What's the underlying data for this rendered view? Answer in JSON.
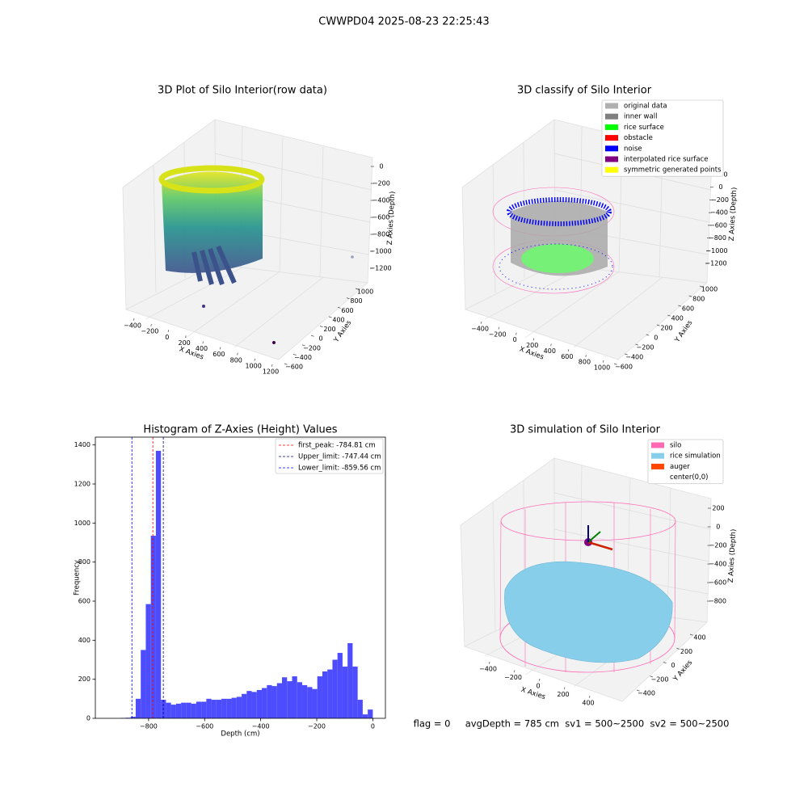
{
  "suptitle": "CWWPD04 2025-08-23 22:25:43",
  "chart_data": {
    "type": "histogram",
    "title": "Histogram of Z-Axies (Height) Values",
    "x_label": "Depth (cm)",
    "y_label": "Frequency",
    "color": "#4d4dff",
    "bins": [
      -900,
      -882,
      -864,
      -846,
      -828,
      -810,
      -792,
      -774,
      -756,
      -738,
      -720,
      -702,
      -684,
      -666,
      -648,
      -630,
      -612,
      -594,
      -576,
      -558,
      -540,
      -522,
      -504,
      -486,
      -468,
      -450,
      -432,
      -414,
      -396,
      -378,
      -360,
      -342,
      -324,
      -306,
      -288,
      -270,
      -252,
      -234,
      -216,
      -198,
      -180,
      -162,
      -144,
      -126,
      -108,
      -90,
      -72,
      -54,
      -36,
      -18,
      0
    ],
    "counts": [
      2,
      3,
      8,
      100,
      350,
      585,
      935,
      1370,
      95,
      80,
      70,
      75,
      80,
      80,
      75,
      85,
      85,
      100,
      95,
      95,
      100,
      100,
      105,
      110,
      125,
      140,
      135,
      145,
      155,
      170,
      165,
      180,
      210,
      190,
      215,
      185,
      170,
      160,
      150,
      215,
      240,
      250,
      300,
      335,
      265,
      385,
      265,
      95,
      20,
      45
    ],
    "xlim": [
      -990,
      45
    ],
    "xticks": [
      {
        "value": -800,
        "label": "−800"
      },
      {
        "value": -600,
        "label": "−600"
      },
      {
        "value": -400,
        "label": "−400"
      },
      {
        "value": -200,
        "label": "−200"
      },
      0
    ],
    "ylim": [
      0,
      1440
    ],
    "yticks": [
      0,
      200,
      400,
      600,
      800,
      1000,
      1200,
      1400
    ],
    "vlines": [
      {
        "value": -784.81,
        "label": "first_peak: -784.81 cm",
        "color": "red"
      },
      {
        "value": -747.44,
        "label": "Upper_limit: -747.44 cm",
        "color": "darkblue"
      },
      {
        "value": -859.56,
        "label": "Lower_limit: -859.56 cm",
        "color": "blue"
      }
    ]
  },
  "panels3d": [
    {
      "title": "3D Plot of Silo Interior(row data)",
      "x_label": "X Axies",
      "y_label": "Y Axies",
      "z_label": "Z Axies (Depth)",
      "xlim": [
        -400,
        1200
      ],
      "ylim": [
        -600,
        1000
      ],
      "zlim": [
        -1200,
        0
      ],
      "xticks": [
        {
          "value": -400,
          "label": "−400"
        },
        {
          "value": -200,
          "label": "−200"
        },
        0,
        200,
        400,
        600,
        800,
        1000,
        1200
      ],
      "yticks": [
        {
          "value": -600,
          "label": "−600"
        },
        {
          "value": -400,
          "label": "−400"
        },
        {
          "value": -200,
          "label": "−200"
        },
        0,
        200,
        400,
        600,
        800,
        1000
      ],
      "zticks": [
        {
          "value": -1200,
          "label": "−1200"
        },
        {
          "value": -1000,
          "label": "−1000"
        },
        {
          "value": -800,
          "label": "−800"
        },
        {
          "value": -600,
          "label": "−600"
        },
        {
          "value": -400,
          "label": "−400"
        },
        {
          "value": -200,
          "label": "−200"
        },
        0
      ],
      "legend": []
    },
    {
      "title": "3D classify of Silo Interior",
      "x_label": "X Axies",
      "y_label": "Y Axies",
      "z_label": "Z Axies (Depth)",
      "xlim": [
        -400,
        1000
      ],
      "ylim": [
        -600,
        1000
      ],
      "zlim": [
        -1200,
        200
      ],
      "xticks": [
        {
          "value": -400,
          "label": "−400"
        },
        {
          "value": -200,
          "label": "−200"
        },
        0,
        200,
        400,
        600,
        800,
        1000
      ],
      "yticks": [
        {
          "value": -600,
          "label": "−600"
        },
        {
          "value": -400,
          "label": "−400"
        },
        {
          "value": -200,
          "label": "−200"
        },
        0,
        200,
        400,
        600,
        800,
        1000
      ],
      "zticks": [
        {
          "value": -1200,
          "label": "−1200"
        },
        {
          "value": -1000,
          "label": "−1000"
        },
        {
          "value": -800,
          "label": "−800"
        },
        {
          "value": -600,
          "label": "−600"
        },
        {
          "value": -400,
          "label": "−400"
        },
        {
          "value": -200,
          "label": "−200"
        },
        0,
        200
      ],
      "legend": [
        {
          "name": "original data",
          "color": "#b0b0b0"
        },
        {
          "name": "inner wall",
          "color": "#808080"
        },
        {
          "name": "rice surface",
          "color": "#00ff00"
        },
        {
          "name": "obstacle",
          "color": "#ff0000"
        },
        {
          "name": "noise",
          "color": "#0000ff"
        },
        {
          "name": "interpolated rice surface",
          "color": "#800080"
        },
        {
          "name": "symmetric generated points",
          "color": "#ffff00"
        }
      ]
    },
    {
      "title": "3D simulation of Silo Interior",
      "x_label": "X Axies",
      "y_label": "Y Axies",
      "z_label": "Z Axies (Depth)",
      "xlim": [
        -400,
        400
      ],
      "ylim": [
        -400,
        400
      ],
      "zlim": [
        -800,
        200
      ],
      "xticks": [
        {
          "value": -400,
          "label": "−400"
        },
        {
          "value": -200,
          "label": "−200"
        },
        0,
        200,
        400
      ],
      "yticks": [
        {
          "value": -400,
          "label": "−400"
        },
        {
          "value": -200,
          "label": "−200"
        },
        0,
        200,
        400
      ],
      "zticks": [
        {
          "value": -800,
          "label": "−800"
        },
        {
          "value": -600,
          "label": "−600"
        },
        {
          "value": -400,
          "label": "−400"
        },
        {
          "value": -200,
          "label": "−200"
        },
        0,
        200
      ],
      "legend": [
        {
          "name": "silo",
          "color": "#ff69b4"
        },
        {
          "name": "rice simulation",
          "color": "#87ceeb"
        },
        {
          "name": "auger",
          "color": "#ff4500"
        },
        {
          "name": "center(0,0)",
          "color": "#ffffff"
        }
      ]
    }
  ],
  "status": "flag = 0     avgDepth = 785 cm  sv1 = 500~2500  sv2 = 500~2500"
}
